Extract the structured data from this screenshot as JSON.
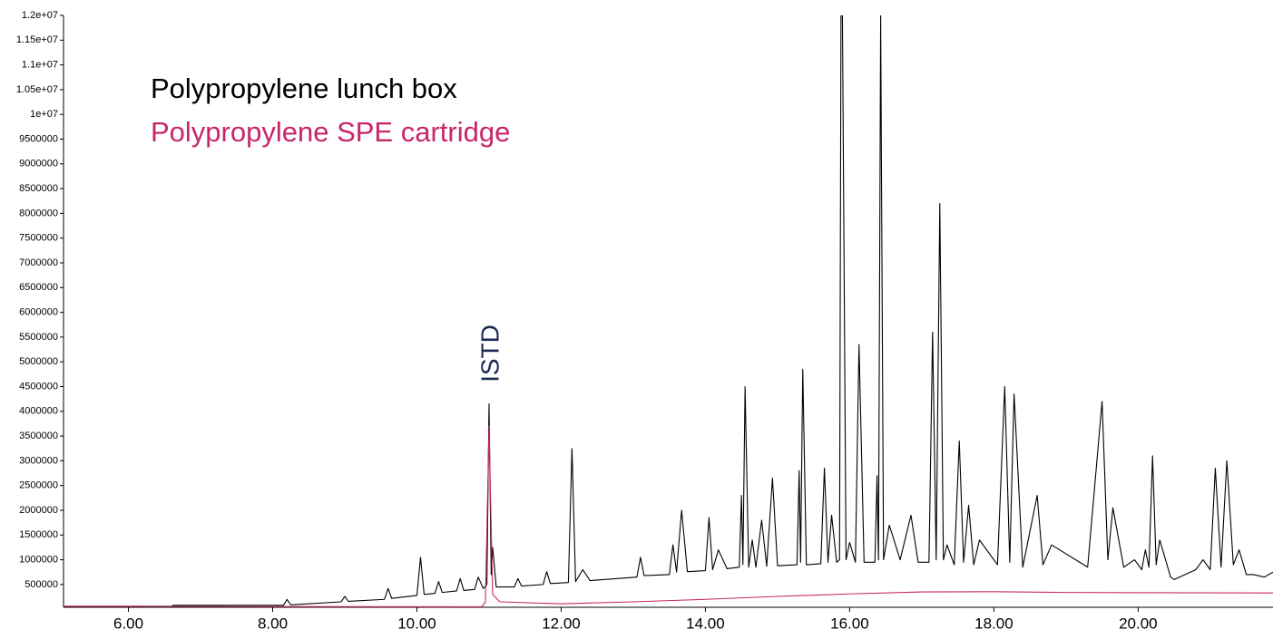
{
  "chart_data": {
    "type": "line",
    "annotation": "ISTD",
    "xlim": [
      5.1,
      21.87
    ],
    "ylim": [
      40000,
      12000000
    ],
    "xticks": [
      {
        "value": 6,
        "label": "6.00"
      },
      {
        "value": 8,
        "label": "8.00"
      },
      {
        "value": 10,
        "label": "10.00"
      },
      {
        "value": 12,
        "label": "12.00"
      },
      {
        "value": 14,
        "label": "14.00"
      },
      {
        "value": 16,
        "label": "16.00"
      },
      {
        "value": 18,
        "label": "18.00"
      },
      {
        "value": 20,
        "label": "20.00"
      }
    ],
    "yticks": [
      500000,
      1000000,
      1500000,
      2000000,
      2500000,
      3000000,
      3500000,
      4000000,
      4500000,
      5000000,
      5500000,
      6000000,
      6500000,
      7000000,
      7500000,
      8000000,
      8500000,
      9000000,
      9500000,
      {
        "value": 10000000,
        "label": "1e+07"
      },
      {
        "value": 10500000,
        "label": "1.05e+07"
      },
      {
        "value": 11000000,
        "label": "1.1e+07"
      },
      {
        "value": 11500000,
        "label": "1.15e+07"
      },
      {
        "value": 12000000,
        "label": "1.2e+07"
      }
    ],
    "grid": false,
    "series": [
      {
        "name": "Polypropylene lunch box",
        "color": "#000000",
        "x": [
          5.1,
          6.6,
          6.62,
          8.15,
          8.2,
          8.25,
          8.95,
          9.0,
          9.05,
          9.55,
          9.6,
          9.65,
          10.0,
          10.05,
          10.1,
          10.25,
          10.3,
          10.35,
          10.55,
          10.6,
          10.65,
          10.8,
          10.85,
          10.92,
          10.97,
          11.0,
          11.03,
          11.05,
          11.1,
          11.35,
          11.4,
          11.45,
          11.75,
          11.8,
          11.85,
          12.1,
          12.15,
          12.2,
          12.3,
          12.4,
          13.05,
          13.1,
          13.15,
          13.5,
          13.55,
          13.6,
          13.67,
          13.75,
          14.0,
          14.05,
          14.1,
          14.18,
          14.3,
          14.47,
          14.5,
          14.52,
          14.55,
          14.6,
          14.65,
          14.7,
          14.78,
          14.85,
          14.93,
          15.0,
          15.27,
          15.3,
          15.32,
          15.35,
          15.4,
          15.6,
          15.65,
          15.7,
          15.75,
          15.82,
          15.86,
          15.88,
          15.9,
          15.95,
          16.0,
          16.08,
          16.13,
          16.2,
          16.35,
          16.38,
          16.4,
          16.43,
          16.47,
          16.55,
          16.7,
          16.85,
          16.95,
          17.1,
          17.15,
          17.2,
          17.25,
          17.3,
          17.35,
          17.45,
          17.52,
          17.58,
          17.65,
          17.72,
          17.8,
          18.05,
          18.15,
          18.22,
          18.28,
          18.4,
          18.6,
          18.68,
          18.8,
          19.3,
          19.5,
          19.58,
          19.65,
          19.8,
          19.95,
          20.05,
          20.1,
          20.15,
          20.2,
          20.25,
          20.3,
          20.45,
          20.5,
          20.8,
          20.9,
          21.0,
          21.07,
          21.15,
          21.23,
          21.32,
          21.4,
          21.5,
          21.6,
          21.75,
          21.87
        ],
        "values": [
          60000,
          60000,
          80000,
          80000,
          200000,
          90000,
          150000,
          260000,
          160000,
          200000,
          420000,
          220000,
          280000,
          1050000,
          300000,
          320000,
          560000,
          340000,
          370000,
          620000,
          380000,
          400000,
          650000,
          420000,
          500000,
          4150000,
          700000,
          1250000,
          450000,
          450000,
          620000,
          470000,
          500000,
          760000,
          520000,
          540000,
          3250000,
          560000,
          800000,
          580000,
          650000,
          1050000,
          680000,
          700000,
          1300000,
          750000,
          2000000,
          760000,
          780000,
          1850000,
          800000,
          1200000,
          820000,
          850000,
          2300000,
          900000,
          4500000,
          850000,
          1400000,
          850000,
          1800000,
          870000,
          2650000,
          880000,
          900000,
          2800000,
          950000,
          4850000,
          900000,
          920000,
          2850000,
          950000,
          1900000,
          950000,
          1000000,
          12000000,
          12000000,
          1000000,
          1350000,
          950000,
          5350000,
          950000,
          950000,
          2700000,
          1000000,
          12000000,
          1000000,
          1700000,
          1000000,
          1900000,
          950000,
          950000,
          5600000,
          1000000,
          8200000,
          1000000,
          1300000,
          900000,
          3400000,
          950000,
          2100000,
          900000,
          1400000,
          900000,
          4500000,
          950000,
          4350000,
          850000,
          2300000,
          900000,
          1300000,
          850000,
          4200000,
          1000000,
          2050000,
          850000,
          1000000,
          800000,
          1200000,
          850000,
          3100000,
          900000,
          1400000,
          650000,
          600000,
          800000,
          1000000,
          800000,
          2850000,
          850000,
          3000000,
          900000,
          1200000,
          700000,
          700000,
          650000,
          750000
        ]
      },
      {
        "name": "Polypropylene SPE cartridge",
        "color": "#c8256a",
        "x": [
          5.1,
          10.9,
          10.95,
          11.0,
          11.05,
          11.15,
          12.0,
          13.0,
          14.0,
          15.0,
          16.0,
          17.0,
          18.0,
          19.0,
          20.0,
          21.87
        ],
        "values": [
          60000,
          50000,
          150000,
          3700000,
          300000,
          150000,
          110000,
          150000,
          200000,
          260000,
          310000,
          350000,
          355000,
          340000,
          335000,
          330000
        ]
      }
    ]
  }
}
